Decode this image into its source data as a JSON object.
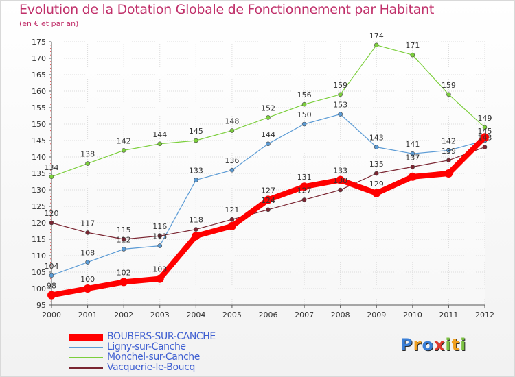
{
  "title": "Evolution de la Dotation Globale de Fonctionnement par Habitant",
  "subtitle": "(en € et par an)",
  "logo": {
    "text": "Proxiti",
    "letters": [
      {
        "ch": "P",
        "color": "#3b7fd6"
      },
      {
        "ch": "r",
        "color": "#f0a020"
      },
      {
        "ch": "o",
        "color": "#3b7fd6"
      },
      {
        "ch": "x",
        "color": "#e03a2f"
      },
      {
        "ch": "i",
        "color": "#7cc243"
      },
      {
        "ch": "t",
        "color": "#f0a020"
      },
      {
        "ch": "i",
        "color": "#7cc243"
      }
    ]
  },
  "chart_data": {
    "type": "line",
    "title": "Evolution de la Dotation Globale de Fonctionnement par Habitant",
    "subtitle": "(en € et par an)",
    "xlabel": "",
    "ylabel": "",
    "x": [
      "2000",
      "2001",
      "2002",
      "2003",
      "2004",
      "2005",
      "2006",
      "2007",
      "2008",
      "2009",
      "2010",
      "2011",
      "2012"
    ],
    "ylim": [
      95,
      175
    ],
    "yticks": [
      95,
      100,
      105,
      110,
      115,
      120,
      125,
      130,
      135,
      140,
      145,
      150,
      155,
      160,
      165,
      170,
      175
    ],
    "grid": true,
    "legend": "bottom-left",
    "series": [
      {
        "name": "BOUBERS-SUR-CANCHE",
        "color": "#ff0000",
        "highlight": true,
        "values": [
          98,
          100,
          102,
          103,
          116,
          119,
          127,
          131,
          133,
          129,
          134,
          135,
          146
        ],
        "labels": [
          "98",
          "100",
          "102",
          "103",
          "",
          "",
          "127",
          "131",
          "133",
          "129",
          "",
          "",
          ""
        ]
      },
      {
        "name": "Ligny-sur-Canche",
        "color": "#5b9bd5",
        "highlight": false,
        "values": [
          104,
          108,
          112,
          113,
          133,
          136,
          144,
          150,
          153,
          143,
          141,
          142,
          145
        ],
        "labels": [
          "104",
          "108",
          "112",
          "113",
          "133",
          "136",
          "144",
          "150",
          "153",
          "143",
          "141",
          "142",
          "145"
        ]
      },
      {
        "name": "Monchel-sur-Canche",
        "color": "#7ccf3c",
        "highlight": false,
        "values": [
          134,
          138,
          142,
          144,
          145,
          148,
          152,
          156,
          159,
          174,
          171,
          159,
          149
        ],
        "labels": [
          "134",
          "138",
          "142",
          "144",
          "145",
          "148",
          "152",
          "156",
          "159",
          "174",
          "171",
          "159",
          "149"
        ]
      },
      {
        "name": "Vacquerie-le-Boucq",
        "color": "#7a2531",
        "highlight": false,
        "values": [
          120,
          117,
          115,
          116,
          118,
          121,
          124,
          127,
          130,
          135,
          137,
          139,
          143
        ],
        "labels": [
          "120",
          "117",
          "115",
          "116",
          "118",
          "121",
          "124",
          "127",
          "130",
          "135",
          "137",
          "139",
          "143"
        ]
      }
    ]
  }
}
